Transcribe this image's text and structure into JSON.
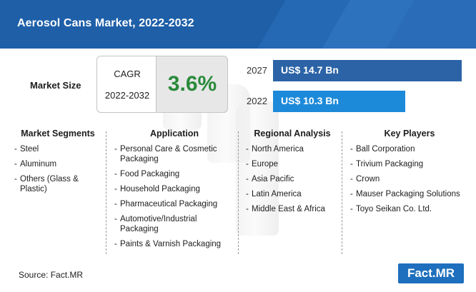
{
  "title": "Aerosol Cans Market, 2022-2032",
  "market_size_label": "Market Size",
  "cagr": {
    "label": "CAGR",
    "period": "2022-2032",
    "value": "3.6%"
  },
  "chart_data": {
    "type": "bar",
    "orientation": "horizontal",
    "categories": [
      "2027",
      "2022"
    ],
    "values": [
      14.7,
      10.3
    ],
    "value_labels": [
      "US$ 14.7 Bn",
      "US$ 10.3 Bn"
    ],
    "colors": [
      "#2b63a6",
      "#1d8ad9"
    ],
    "xlim": [
      0,
      15.5
    ],
    "grid": false
  },
  "segments": [
    {
      "heading": "Market Segments",
      "items": [
        "Steel",
        "Aluminum",
        "Others (Glass & Plastic)"
      ]
    },
    {
      "heading": "Application",
      "items": [
        "Personal Care & Cosmetic Packaging",
        "Food Packaging",
        "Household Packaging",
        "Pharmaceutical Packaging",
        "Automotive/Industrial Packaging",
        "Paints & Varnish Packaging"
      ]
    },
    {
      "heading": "Regional Analysis",
      "items": [
        "North America",
        "Europe",
        "Asia Pacific",
        "Latin America",
        "Middle East & Africa"
      ]
    },
    {
      "heading": "Key Players",
      "items": [
        "Ball Corporation",
        "Trivium Packaging",
        "Crown",
        "Mauser Packaging Solutions",
        "Toyo Seikan Co. Ltd."
      ]
    }
  ],
  "source": "Source: Fact.MR",
  "logo": "Fact.MR"
}
